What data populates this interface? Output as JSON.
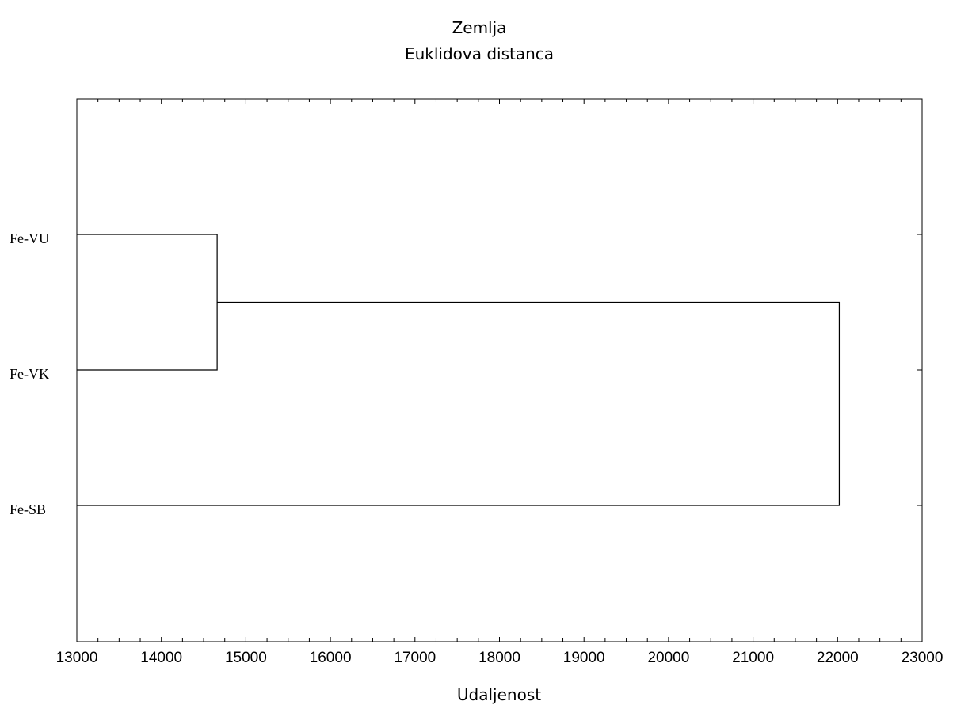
{
  "chart_data": {
    "type": "dendrogram",
    "title": "Zemlja",
    "subtitle": "Euklidova distanca",
    "xlabel": "Udaljenost",
    "xlim": [
      13000,
      23000
    ],
    "xticks": [
      13000,
      14000,
      15000,
      16000,
      17000,
      18000,
      19000,
      20000,
      21000,
      22000,
      23000
    ],
    "minor_tick_step": 250,
    "leaves": [
      "Fe-VU",
      "Fe-VK",
      "Fe-SB"
    ],
    "merges": [
      {
        "members": [
          "Fe-VU",
          "Fe-VK"
        ],
        "distance": 14660
      },
      {
        "members": [
          "Fe-VU",
          "Fe-VK",
          "Fe-SB"
        ],
        "distance": 22020
      }
    ],
    "grid": false,
    "legend": "none"
  }
}
